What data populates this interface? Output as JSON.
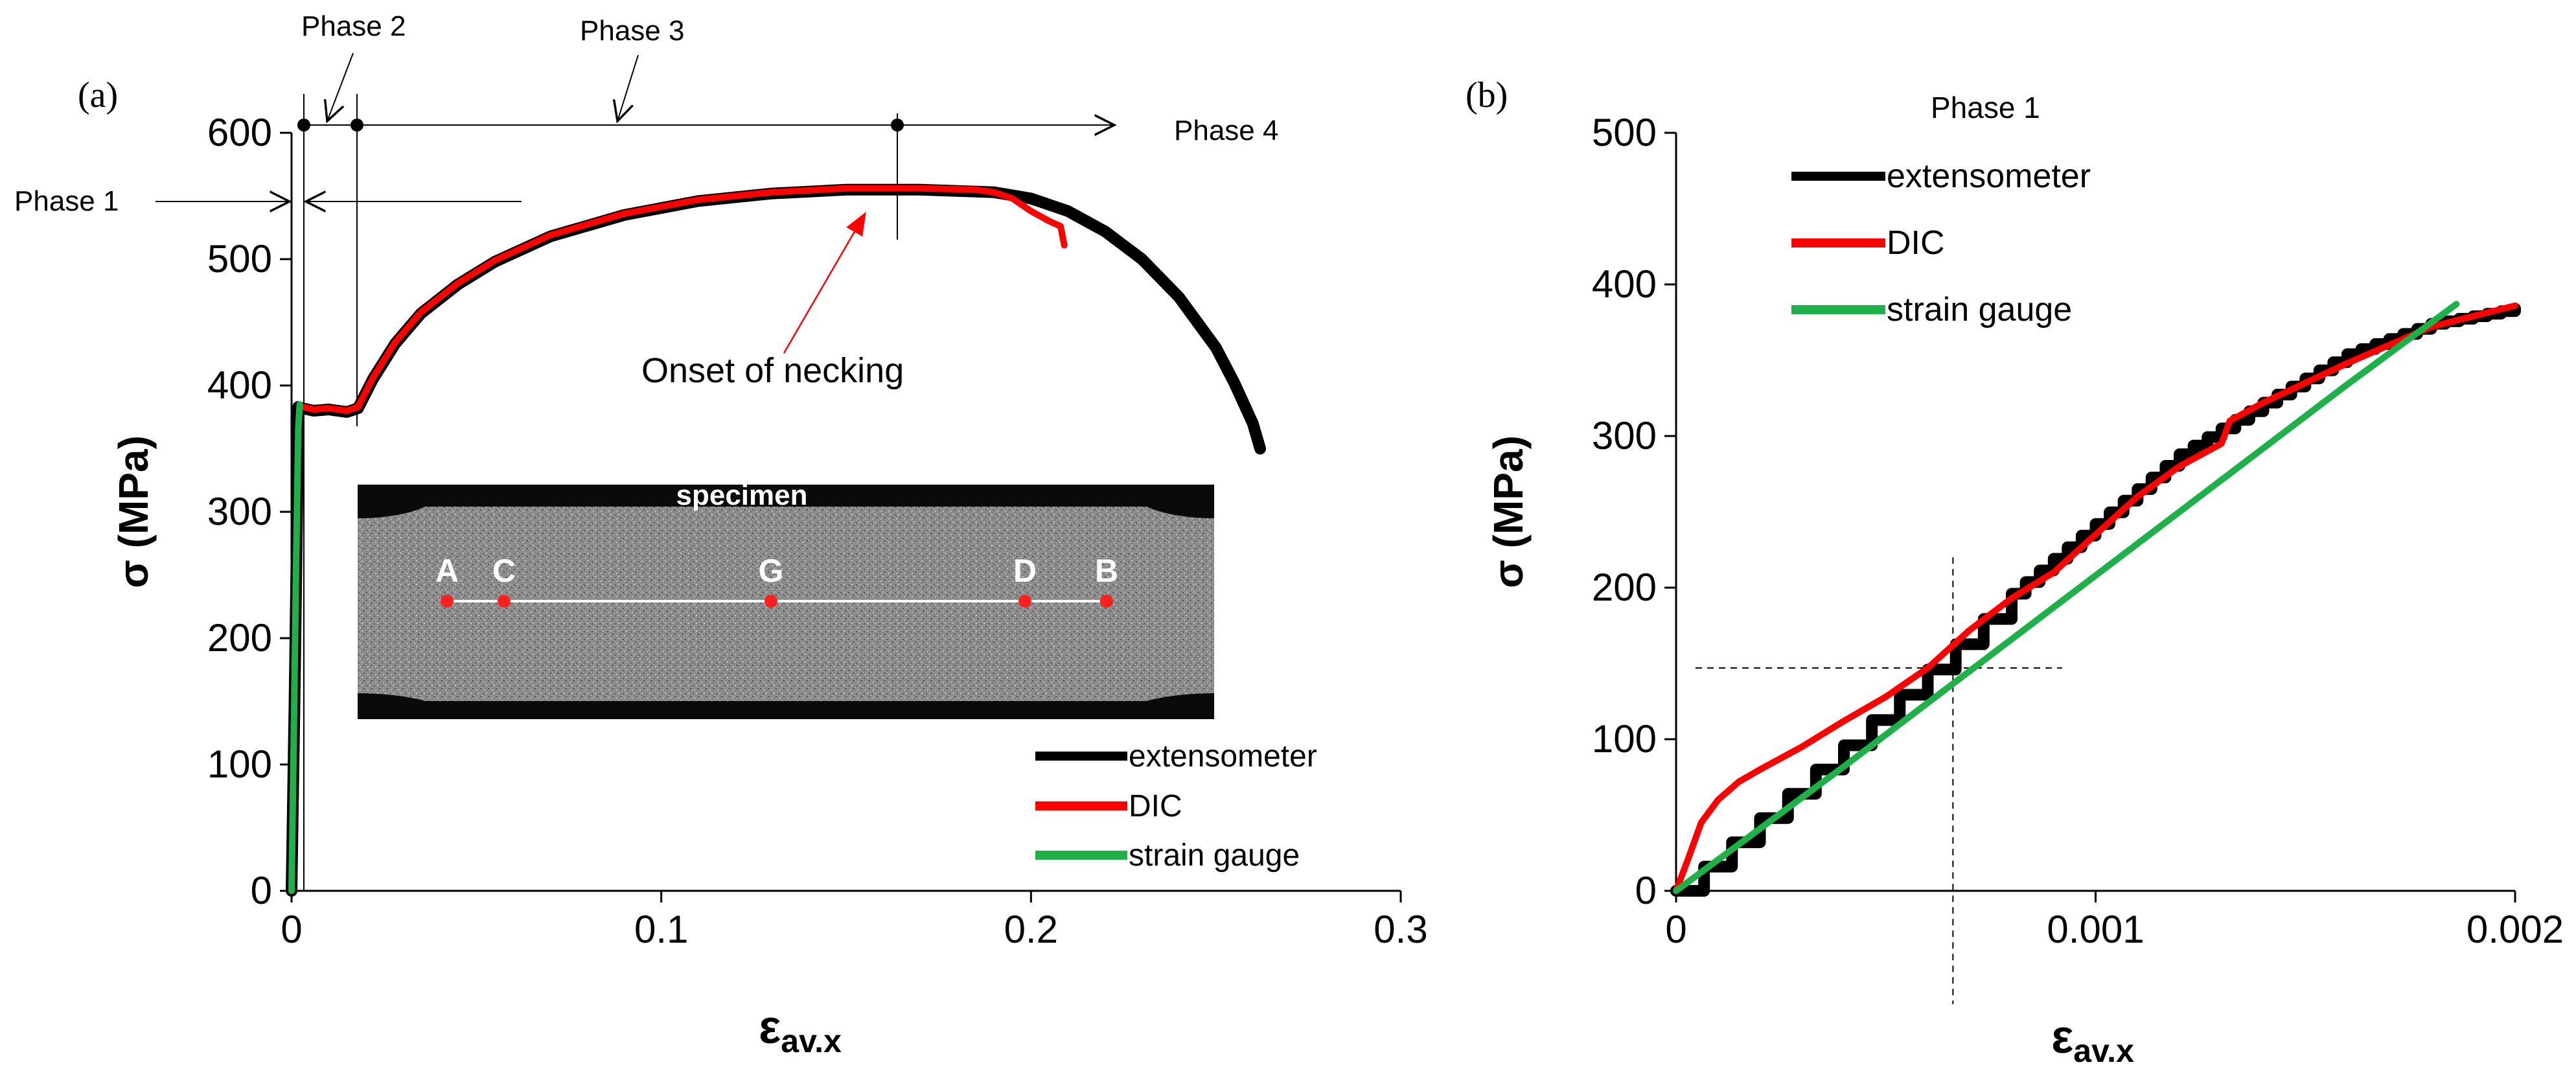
{
  "colors": {
    "extensometer": "#000000",
    "dic": "#ff0000",
    "strain_gauge": "#1fb04a",
    "specimen_mark": "#ff2020"
  },
  "chart_data": [
    {
      "type": "line",
      "panel_label": "(a)",
      "xlabel_main": "ε",
      "xlabel_sub": "av.x",
      "ylabel": "σ (MPa)",
      "xlim": [
        0,
        0.3
      ],
      "ylim": [
        0,
        600
      ],
      "xticks": [
        0,
        0.1,
        0.2,
        0.3
      ],
      "xtick_labels": [
        "0",
        "0.1",
        "0.2",
        "0.3"
      ],
      "yticks": [
        0,
        100,
        200,
        300,
        400,
        500,
        600
      ],
      "ytick_labels": [
        "0",
        "100",
        "200",
        "300",
        "400",
        "500",
        "600"
      ],
      "legend": [
        "extensometer",
        "DIC",
        "strain gauge"
      ],
      "legend_position": "bottom-right",
      "series": [
        {
          "name": "extensometer",
          "x": [
            0,
            0.0008,
            0.0015,
            0.0018,
            0.003,
            0.006,
            0.01,
            0.015,
            0.018,
            0.022,
            0.028,
            0.035,
            0.045,
            0.055,
            0.07,
            0.09,
            0.11,
            0.13,
            0.15,
            0.17,
            0.19,
            0.2,
            0.21,
            0.22,
            0.23,
            0.24,
            0.25,
            0.255,
            0.26,
            0.262
          ],
          "y": [
            0,
            150,
            300,
            383,
            382,
            380,
            381,
            379,
            382,
            405,
            433,
            457,
            480,
            498,
            518,
            535,
            546,
            552,
            555,
            555,
            553,
            548,
            538,
            522,
            500,
            470,
            430,
            402,
            370,
            350
          ]
        },
        {
          "name": "DIC",
          "x": [
            0.003,
            0.006,
            0.01,
            0.015,
            0.018,
            0.022,
            0.028,
            0.035,
            0.045,
            0.055,
            0.07,
            0.09,
            0.11,
            0.13,
            0.15,
            0.17,
            0.185,
            0.19,
            0.195,
            0.2,
            0.205,
            0.208,
            0.209
          ],
          "y": [
            383,
            381,
            382,
            380,
            383,
            406,
            434,
            458,
            481,
            499,
            519,
            536,
            547,
            553,
            556,
            556,
            555,
            553,
            548,
            538,
            530,
            526,
            511
          ]
        },
        {
          "name": "strain gauge",
          "x": [
            0,
            0.0006,
            0.0012,
            0.0018,
            0.0022
          ],
          "y": [
            0,
            120,
            250,
            365,
            385
          ]
        }
      ],
      "annotations": {
        "phase1": "Phase 1",
        "phase2": "Phase 2",
        "phase3": "Phase 3",
        "phase4": "Phase 4",
        "necking": "Onset of necking"
      },
      "phase_boundaries_x": [
        0.0028,
        0.0175,
        0.163
      ],
      "necking_point": {
        "x": 0.156,
        "y": 556
      },
      "inset": {
        "title": "specimen",
        "points": [
          "A",
          "C",
          "G",
          "D",
          "B"
        ]
      }
    },
    {
      "type": "line",
      "panel_label": "(b)",
      "title": "Phase 1",
      "xlabel_main": "ε",
      "xlabel_sub": "av.x",
      "ylabel": "σ (MPa)",
      "xlim": [
        0,
        0.002
      ],
      "ylim": [
        0,
        500
      ],
      "xticks": [
        0,
        0.001,
        0.002
      ],
      "xtick_labels": [
        "0",
        "0.001",
        "0.002"
      ],
      "yticks": [
        0,
        100,
        200,
        300,
        400,
        500
      ],
      "ytick_labels": [
        "0",
        "100",
        "200",
        "300",
        "400",
        "500"
      ],
      "legend": [
        "extensometer",
        "DIC",
        "strain gauge"
      ],
      "legend_position": "top-left",
      "series": [
        {
          "name": "extensometer",
          "x": [
            0,
            0.0004,
            0.0008,
            0.001,
            0.0012,
            0.0014,
            0.0016,
            0.0018,
            0.002
          ],
          "y": [
            0,
            96,
            196,
            242,
            288,
            322,
            354,
            374,
            384
          ]
        },
        {
          "name": "DIC",
          "x": [
            0,
            3e-05,
            6e-05,
            0.0001,
            0.00015,
            0.0002,
            0.0003,
            0.0004,
            0.0005,
            0.0006,
            0.0007,
            0.0008,
            0.0009,
            0.001,
            0.0011,
            0.0012,
            0.0013,
            0.00132,
            0.0014,
            0.0016,
            0.0018,
            0.002
          ],
          "y": [
            0,
            22,
            45,
            60,
            72,
            80,
            95,
            112,
            128,
            147,
            172,
            193,
            210,
            235,
            260,
            280,
            295,
            310,
            322,
            348,
            372,
            386
          ]
        },
        {
          "name": "strain gauge",
          "x": [
            0,
            0.0004,
            0.0008,
            0.0012,
            0.0016,
            0.00186
          ],
          "y": [
            0,
            82,
            166,
            250,
            334,
            387
          ]
        }
      ],
      "reference_lines": {
        "x": 0.00066,
        "y": 147
      }
    }
  ]
}
